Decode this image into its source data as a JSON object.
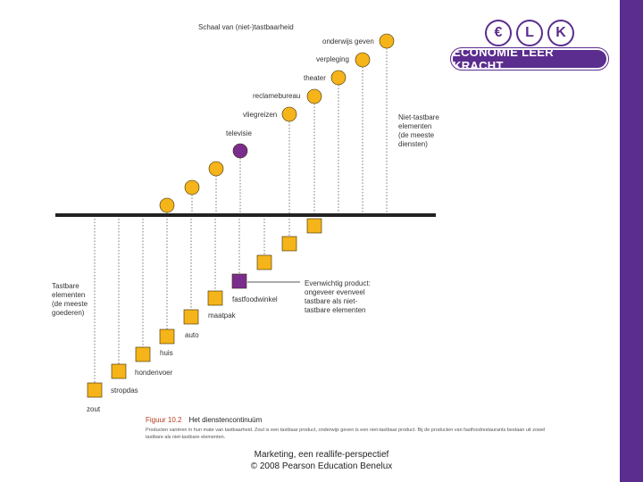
{
  "logo": {
    "letters": [
      "€",
      "L",
      "K"
    ],
    "name": "ECONOMIE LEER KRACHT"
  },
  "diagram": {
    "scale_title": "Schaal van (niet-)tastbaarheid",
    "intangible_label": [
      "Niet-tastbare",
      "elementen",
      "(de meeste",
      "diensten)"
    ],
    "tangible_label": [
      "Tastbare",
      "elementen",
      "(de meeste",
      "goederen)"
    ],
    "balanced_label": [
      "Evenwichtig product:",
      "ongeveer evenveel",
      "tastbare als niet-",
      "tastbare elementen"
    ],
    "colors": {
      "tangible_square": "#f4b41a",
      "intangible_circle": "#f4b41a",
      "balanced": "#7b2d8e",
      "axis": "#222222"
    },
    "products": [
      {
        "name": "zout",
        "tangible": "high",
        "label": "zout"
      },
      {
        "name": "stropdas",
        "tangible": "high",
        "label": "stropdas"
      },
      {
        "name": "hondenvoer",
        "tangible": "high",
        "label": "hondenvoer"
      },
      {
        "name": "huis",
        "tangible": "high",
        "label": "huis"
      },
      {
        "name": "auto",
        "tangible": "high",
        "label": "auto"
      },
      {
        "name": "maatpak",
        "tangible": "high",
        "label": "maatpak"
      },
      {
        "name": "fastfoodwinkel",
        "tangible": "balanced",
        "label": "fastfoodwinkel"
      },
      {
        "name": "televisie",
        "tangible": "balanced",
        "label": "televisie"
      },
      {
        "name": "vliegreizen",
        "tangible": "low",
        "label": "vliegreizen"
      },
      {
        "name": "reclamebureau",
        "tangible": "low",
        "label": "reclamebureau"
      },
      {
        "name": "theater",
        "tangible": "low",
        "label": "theater"
      },
      {
        "name": "verpleging",
        "tangible": "low",
        "label": "verpleging"
      },
      {
        "name": "onderwijs geven",
        "tangible": "low",
        "label": "onderwijs geven"
      }
    ]
  },
  "caption": {
    "figure_number": "Figuur 10.2",
    "figure_title": "Het dienstencontinuüm",
    "body": "Producten variëren in hun mate van tastbaarheid. Zout is een tastbaar product, onderwijs geven is een niet-tastbaar product. Bij de producten van fastfoodrestaurants bestaan uit zowel tastbare als niet-tastbare elementen."
  },
  "footer": {
    "line1": "Marketing, een reallife-perspectief",
    "line2": "© 2008 Pearson Education Benelux"
  }
}
